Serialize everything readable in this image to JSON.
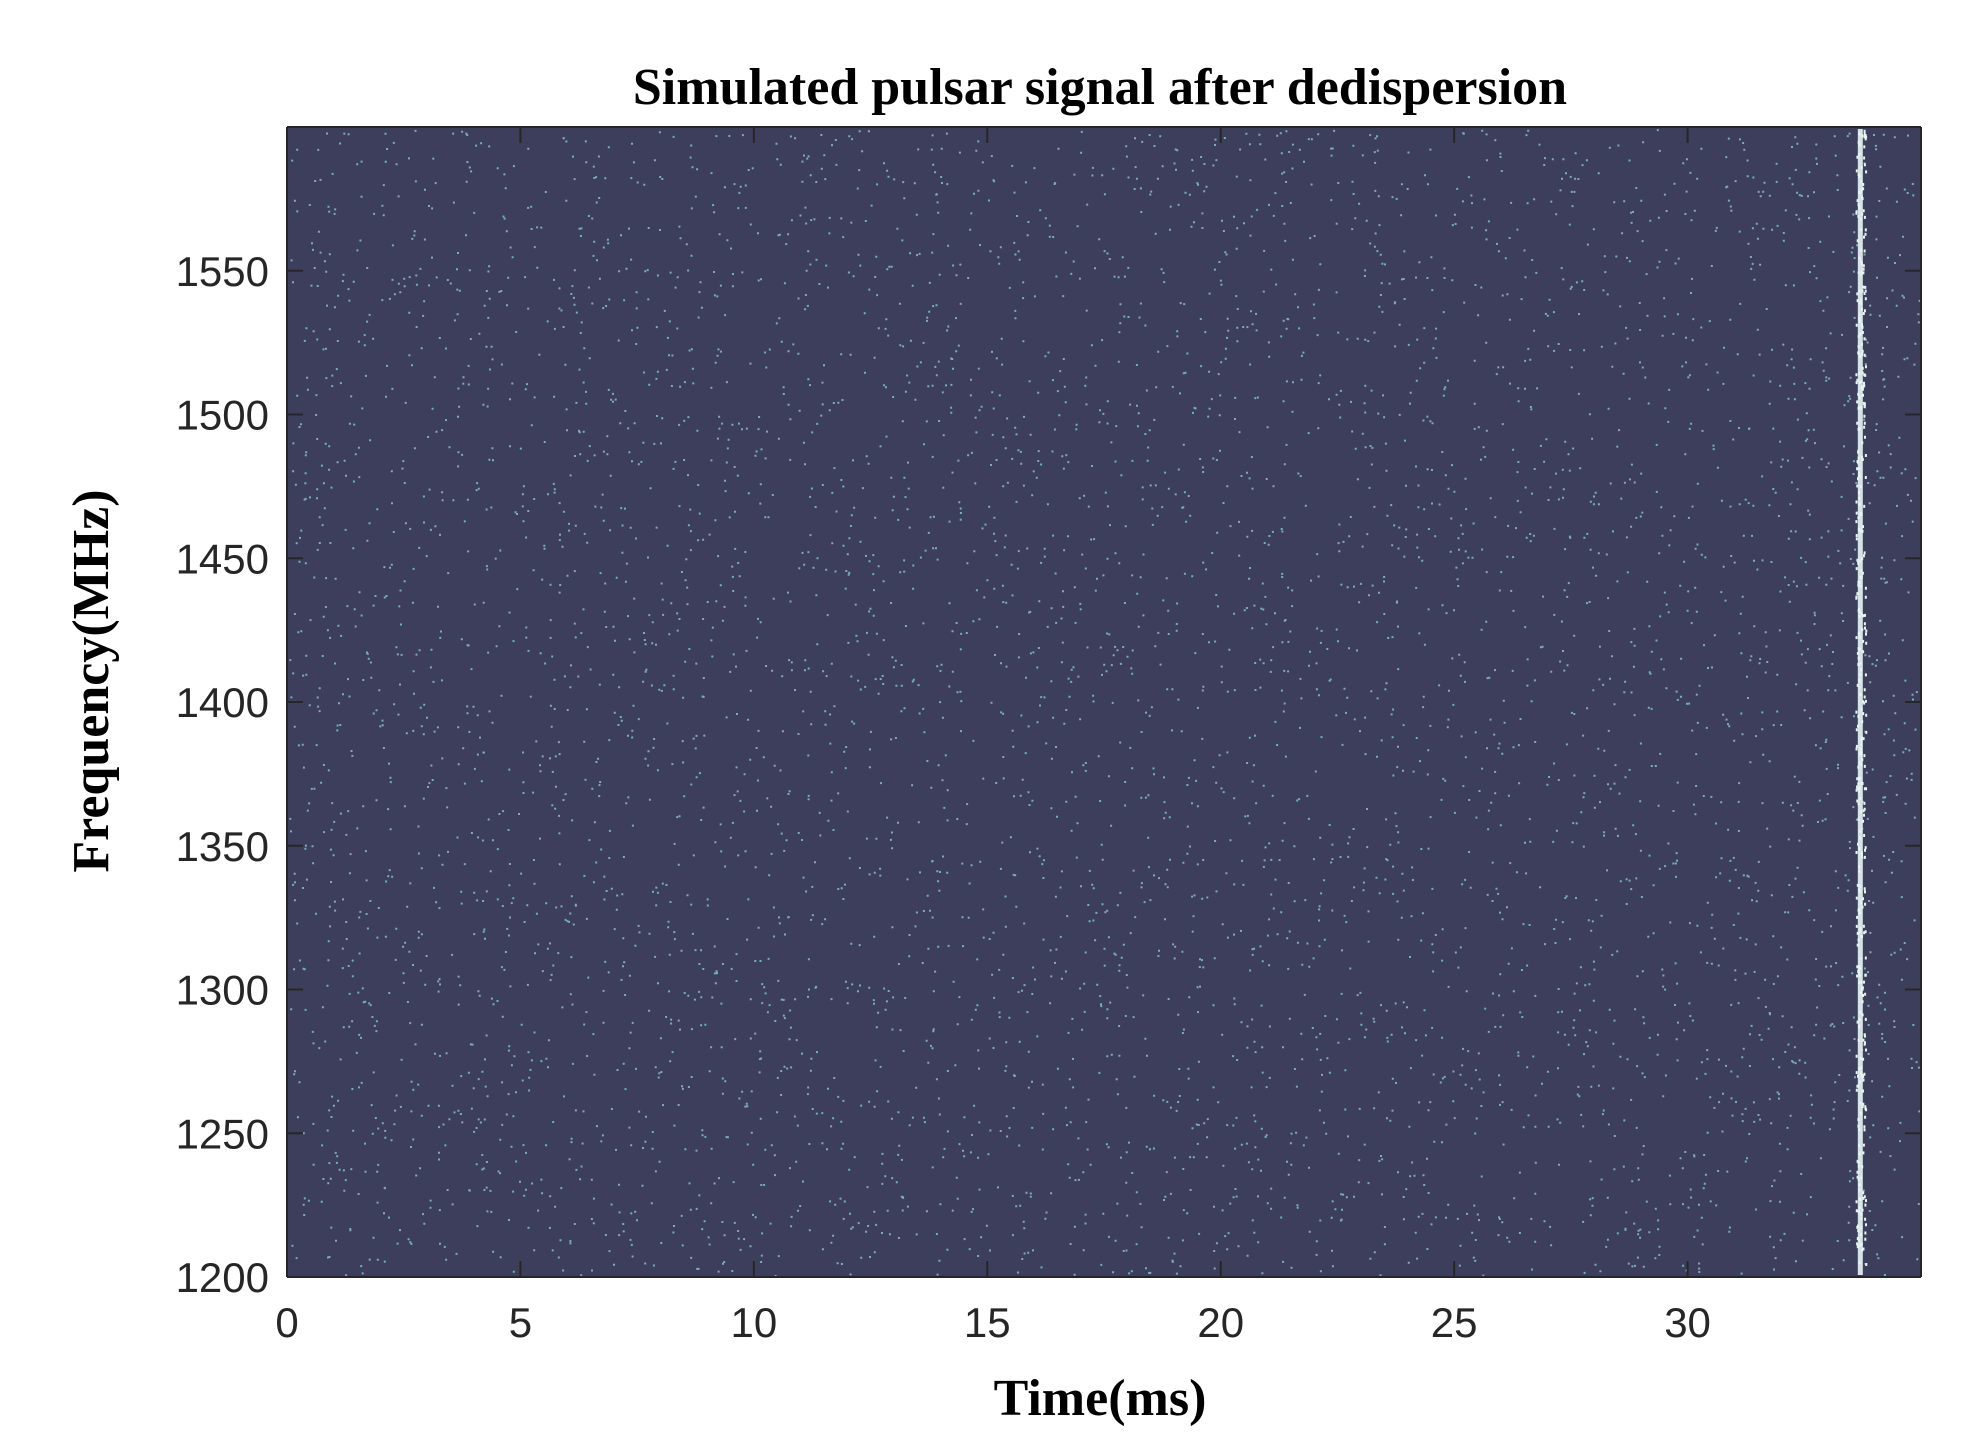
{
  "chart_data": {
    "type": "heatmap",
    "title": "Simulated pulsar signal after dedispersion",
    "xlabel": "Time(ms)",
    "ylabel": "Frequency(MHz)",
    "xlim": [
      0,
      35
    ],
    "ylim": [
      1200,
      1600
    ],
    "xticks": [
      0,
      5,
      10,
      15,
      20,
      25,
      30
    ],
    "yticks": [
      1200,
      1250,
      1300,
      1350,
      1400,
      1450,
      1500,
      1550
    ],
    "grid": false,
    "pulse": {
      "time_ms": 33.7,
      "freq_range": [
        1200,
        1600
      ]
    },
    "colors": {
      "background": "#3d3d5c",
      "noise": "#8fd4d4",
      "pulse": "#e8f4f4"
    }
  }
}
